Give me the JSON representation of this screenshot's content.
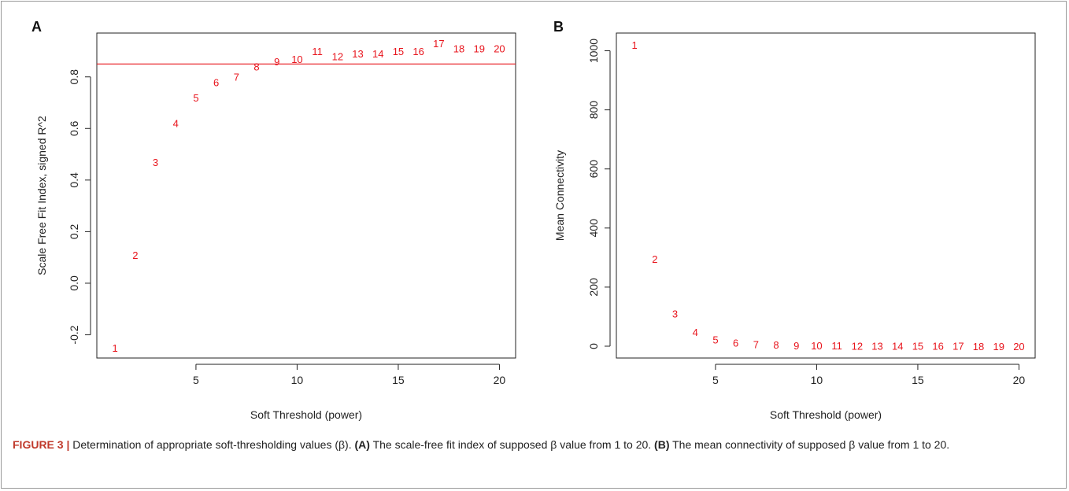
{
  "caption": {
    "figure_label": "FIGURE 3 |",
    "text_1": " Determination of appropriate soft-thresholding values (β). ",
    "bold_a": "(A)",
    "text_2": " The scale-free fit index of supposed β value from 1 to 20. ",
    "bold_b": "(B)",
    "text_3": " The mean connectivity of supposed β value from 1 to 20."
  },
  "colors": {
    "points": "#e8141c",
    "threshold_line": "#e8141c",
    "axes": "#222222"
  },
  "chart_data": [
    {
      "type": "scatter",
      "panel_label": "A",
      "xlabel": "Soft Threshold (power)",
      "ylabel": "Scale Free Fit Index, signed R^2",
      "xlim": [
        0.1,
        20.8
      ],
      "ylim": [
        -0.29,
        0.97
      ],
      "xticks": [
        5,
        10,
        15,
        20
      ],
      "yticks": [
        -0.2,
        0.0,
        0.2,
        0.4,
        0.6,
        0.8
      ],
      "ytick_labels": [
        "-0.2",
        "0.0",
        "0.2",
        "0.4",
        "0.6",
        "0.8"
      ],
      "hline": 0.85,
      "grid": false,
      "x": [
        1,
        2,
        3,
        4,
        5,
        6,
        7,
        8,
        9,
        10,
        11,
        12,
        13,
        14,
        15,
        16,
        17,
        18,
        19,
        20
      ],
      "y": [
        -0.25,
        0.11,
        0.47,
        0.62,
        0.72,
        0.78,
        0.8,
        0.84,
        0.86,
        0.87,
        0.9,
        0.88,
        0.89,
        0.89,
        0.9,
        0.9,
        0.93,
        0.91,
        0.91,
        0.91
      ],
      "point_labels": [
        "1",
        "2",
        "3",
        "4",
        "5",
        "6",
        "7",
        "8",
        "9",
        "10",
        "11",
        "12",
        "13",
        "14",
        "15",
        "16",
        "17",
        "18",
        "19",
        "20"
      ]
    },
    {
      "type": "scatter",
      "panel_label": "B",
      "xlabel": "Soft Threshold (power)",
      "ylabel": "Mean Connectivity",
      "xlim": [
        0.1,
        20.8
      ],
      "ylim": [
        -40,
        1060
      ],
      "xticks": [
        5,
        10,
        15,
        20
      ],
      "yticks": [
        0,
        200,
        400,
        600,
        800,
        1000
      ],
      "ytick_labels": [
        "0",
        "200",
        "400",
        "600",
        "800",
        "1000"
      ],
      "grid": false,
      "x": [
        1,
        2,
        3,
        4,
        5,
        6,
        7,
        8,
        9,
        10,
        11,
        12,
        13,
        14,
        15,
        16,
        17,
        18,
        19,
        20
      ],
      "y": [
        1020,
        295,
        110,
        48,
        22,
        12,
        7,
        5,
        3,
        2,
        2,
        1.5,
        1,
        1,
        1,
        1,
        0.8,
        0.6,
        0.5,
        0.4
      ],
      "point_labels": [
        "1",
        "2",
        "3",
        "4",
        "5",
        "6",
        "7",
        "8",
        "9",
        "10",
        "11",
        "12",
        "13",
        "14",
        "15",
        "16",
        "17",
        "18",
        "19",
        "20"
      ]
    }
  ]
}
